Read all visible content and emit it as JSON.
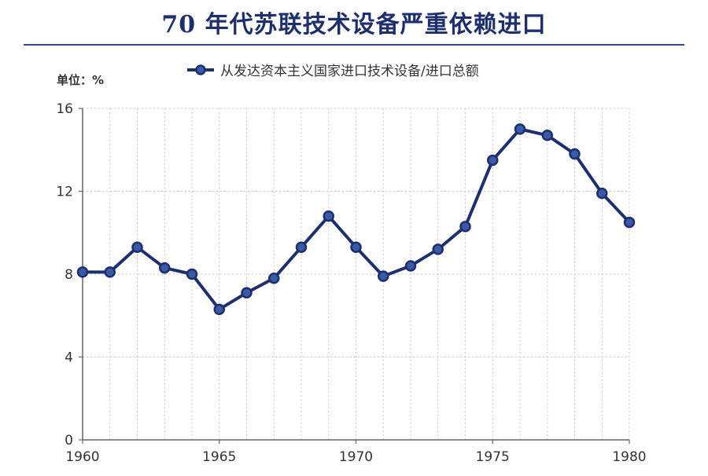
{
  "chart_data": {
    "type": "line",
    "title": "70 年代苏联技术设备严重依赖进口",
    "unit_label": "单位：%",
    "xlabel": "",
    "ylabel": "",
    "legend_placement": "top",
    "grid": true,
    "x_ticks": [
      1960,
      1965,
      1970,
      1975,
      1980
    ],
    "y_ticks": [
      0,
      4,
      8,
      12,
      16
    ],
    "xlim": [
      1960,
      1980
    ],
    "ylim": [
      0,
      16
    ],
    "x": [
      1960,
      1961,
      1962,
      1963,
      1964,
      1965,
      1966,
      1967,
      1968,
      1969,
      1970,
      1971,
      1972,
      1973,
      1974,
      1975,
      1976,
      1977,
      1978,
      1979,
      1980
    ],
    "series": [
      {
        "name": "从发达资本主义国家进口技术设备/进口总额",
        "color": "#1e2f6e",
        "values": [
          8.1,
          8.1,
          9.3,
          8.3,
          8.0,
          6.3,
          7.1,
          7.8,
          9.3,
          10.8,
          9.3,
          7.9,
          8.4,
          9.2,
          10.3,
          13.5,
          15.0,
          14.7,
          13.8,
          11.9,
          10.5
        ]
      }
    ]
  }
}
